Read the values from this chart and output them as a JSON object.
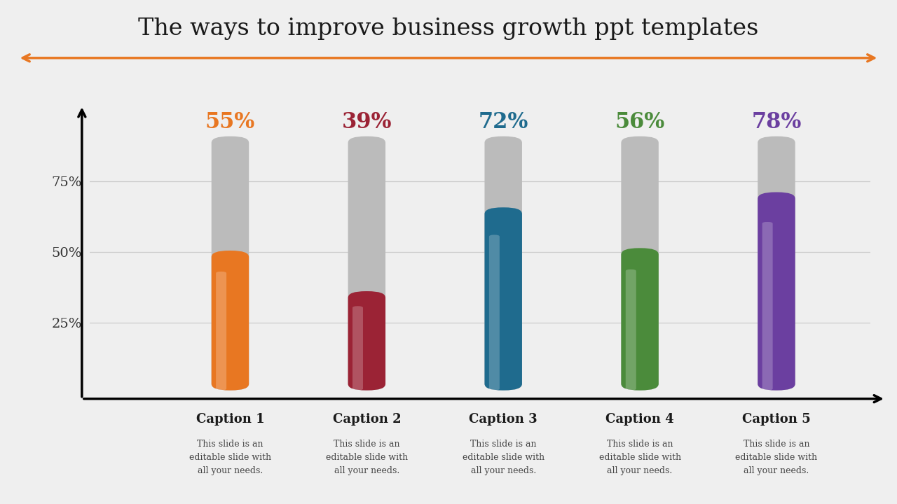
{
  "title": "The ways to improve business growth ppt templates",
  "title_fontsize": 24,
  "title_color": "#1a1a1a",
  "title_font": "serif",
  "arrow_color": "#E87722",
  "background_color": "#efefef",
  "categories": [
    "Caption 1",
    "Caption 2",
    "Caption 3",
    "Caption 4",
    "Caption 5"
  ],
  "subcaption_lines": [
    "This slide is an",
    "editable slide with",
    "all your needs."
  ],
  "values": [
    55,
    39,
    72,
    56,
    78
  ],
  "max_value": 100,
  "bar_colors": [
    "#E87722",
    "#9B2335",
    "#1F6B8E",
    "#4B8B3B",
    "#6B3FA0"
  ],
  "pct_colors": [
    "#E87722",
    "#9B2335",
    "#1F6B8E",
    "#4B8B3B",
    "#6B3FA0"
  ],
  "bar_width": 0.048,
  "yticks": [
    25,
    50,
    75
  ],
  "ytick_labels": [
    "25%",
    "50%",
    "75%"
  ],
  "gray_color": "#bbbbbb",
  "caption_fontsize": 13,
  "subcaption_fontsize": 9,
  "pct_fontsize": 22
}
